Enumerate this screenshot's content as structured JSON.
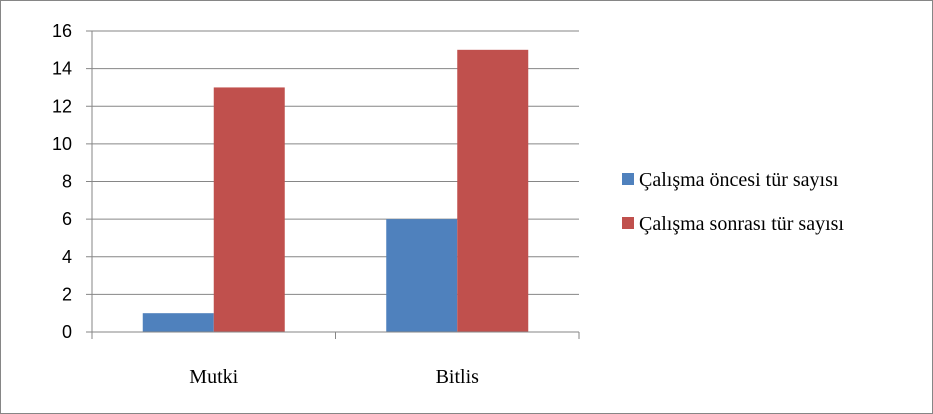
{
  "chart_data": {
    "type": "bar",
    "title": "",
    "xlabel": "",
    "ylabel": "",
    "categories": [
      "Mutki",
      "Bitlis"
    ],
    "series": [
      {
        "name": "Çalışma öncesi tür sayısı",
        "values": [
          1,
          6
        ],
        "color": "#4f81bd"
      },
      {
        "name": "Çalışma sonrası tür sayısı",
        "values": [
          13,
          15
        ],
        "color": "#c0504d"
      }
    ],
    "ylim": [
      0,
      16
    ],
    "yticks": [
      "0",
      "2",
      "4",
      "6",
      "8",
      "10",
      "12",
      "14",
      "16"
    ],
    "grid": true,
    "legend_position": "right"
  }
}
